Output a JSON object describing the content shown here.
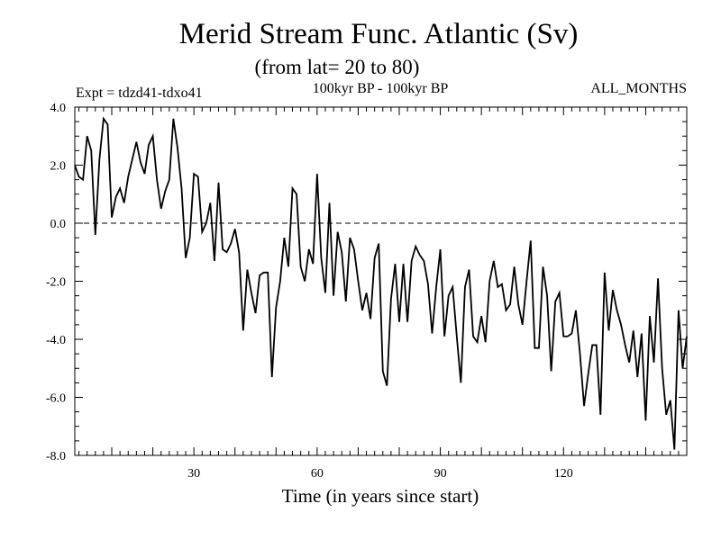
{
  "chart_data": {
    "type": "line",
    "title": "Merid Stream Func. Atlantic (Sv)",
    "subtitle": "(from lat= 20 to 80)",
    "annotations": {
      "left": "Expt = tdzd41-tdxo41",
      "center": "100kyr BP - 100kyr BP",
      "right": "ALL_MONTHS"
    },
    "xlabel": "Time (in years since start)",
    "ylabel": "",
    "xlim": [
      1,
      150
    ],
    "ylim": [
      -8.0,
      4.0
    ],
    "x_ticks": [
      30,
      60,
      90,
      120
    ],
    "x_tick_labels": [
      "30",
      "60",
      "90",
      "120"
    ],
    "y_ticks": [
      -8.0,
      -6.0,
      -4.0,
      -2.0,
      0.0,
      2.0,
      4.0
    ],
    "y_tick_labels": [
      "-8.0",
      "-6.0",
      "-4.0",
      "-2.0",
      "0.0",
      "2.0",
      "4.0"
    ],
    "reference_line": {
      "y": 0.0,
      "style": "dashed"
    },
    "grid": false,
    "series": [
      {
        "name": "Merid Stream Func.",
        "x_start": 1,
        "x_step": 1,
        "values": [
          2.0,
          1.6,
          1.5,
          3.0,
          2.5,
          -0.4,
          2.2,
          3.6,
          3.4,
          0.2,
          0.9,
          1.2,
          0.7,
          1.6,
          2.2,
          2.8,
          2.1,
          1.7,
          2.7,
          3.0,
          1.5,
          0.5,
          1.1,
          1.5,
          3.6,
          2.6,
          1.2,
          -1.2,
          -0.5,
          1.7,
          1.6,
          -0.3,
          0.0,
          0.7,
          -1.3,
          1.4,
          -0.9,
          -1.0,
          -0.7,
          -0.2,
          -1.0,
          -3.7,
          -1.6,
          -2.4,
          -3.1,
          -1.8,
          -1.7,
          -1.7,
          -5.3,
          -2.9,
          -2.0,
          -0.5,
          -1.5,
          1.2,
          1.0,
          -1.5,
          -2.0,
          -0.9,
          -1.4,
          1.7,
          -1.2,
          -2.4,
          0.7,
          -2.5,
          -0.3,
          -1.0,
          -2.7,
          -0.5,
          -0.9,
          -2.0,
          -3.0,
          -2.4,
          -3.3,
          -1.2,
          -0.7,
          -5.1,
          -5.6,
          -2.6,
          -1.4,
          -3.4,
          -1.4,
          -3.4,
          -1.3,
          -0.8,
          -1.1,
          -1.3,
          -2.1,
          -3.8,
          -2.2,
          -0.9,
          -3.9,
          -2.5,
          -2.2,
          -3.9,
          -5.5,
          -2.2,
          -1.6,
          -3.9,
          -4.1,
          -3.2,
          -4.1,
          -2.0,
          -1.3,
          -2.2,
          -2.1,
          -3.0,
          -2.8,
          -1.5,
          -2.8,
          -3.5,
          -2.0,
          -0.6,
          -4.3,
          -4.3,
          -1.5,
          -2.5,
          -5.1,
          -2.7,
          -2.4,
          -3.9,
          -3.9,
          -3.8,
          -3.0,
          -4.5,
          -6.3,
          -5.2,
          -4.2,
          -4.2,
          -6.6,
          -1.7,
          -3.7,
          -2.3,
          -3.0,
          -3.5,
          -4.2,
          -4.8,
          -3.7,
          -5.3,
          -3.8,
          -6.8,
          -3.2,
          -4.8,
          -1.9,
          -5.0,
          -6.6,
          -6.1,
          -7.8,
          -3.0,
          -5.0,
          -3.9
        ]
      }
    ]
  }
}
